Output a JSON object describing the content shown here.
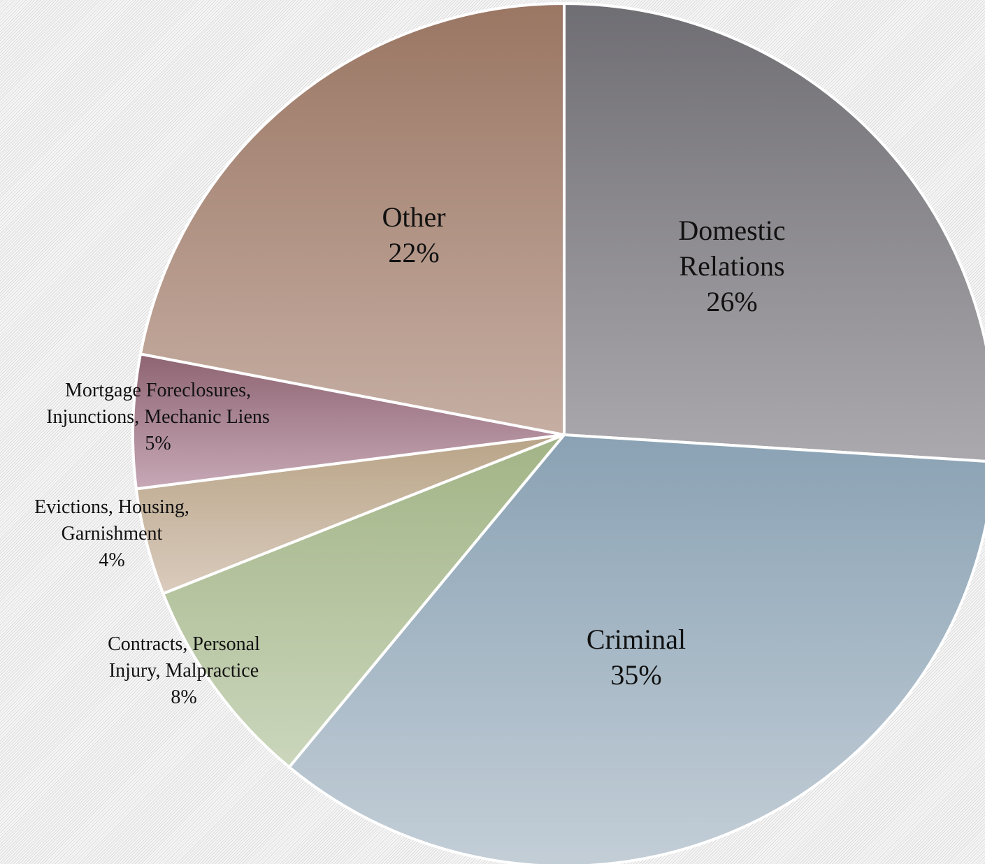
{
  "chart_data": {
    "type": "pie",
    "start_angle_deg": 0,
    "direction": "clockwise",
    "slices": [
      {
        "label": "Domestic Relations",
        "value": 26,
        "value_label": "26%",
        "color_top": "#6f6e73",
        "color_bottom": "#aba9ad"
      },
      {
        "label": "Criminal",
        "value": 35,
        "value_label": "35%",
        "color_top": "#8aa2b4",
        "color_bottom": "#c3ced7"
      },
      {
        "label": "Contracts, Personal Injury, Malpractice",
        "value": 8,
        "value_label": "8%",
        "color_top": "#a2b486",
        "color_bottom": "#cbd6bc"
      },
      {
        "label": "Evictions, Housing, Garnishment",
        "value": 4,
        "value_label": "4%",
        "color_top": "#b8a487",
        "color_bottom": "#dacbbd"
      },
      {
        "label": "Mortgage Foreclosures, Injunctions, Mechanic Liens",
        "value": 5,
        "value_label": "5%",
        "color_top": "#8e6472",
        "color_bottom": "#c7a8b6"
      },
      {
        "label": "Other",
        "value": 22,
        "value_label": "22%",
        "color_top": "#9a7663",
        "color_bottom": "#c6aea3"
      }
    ]
  }
}
